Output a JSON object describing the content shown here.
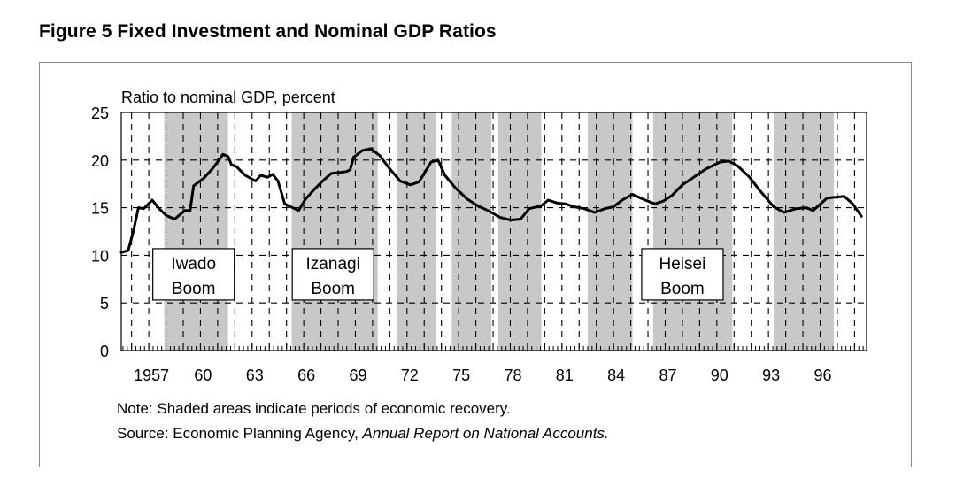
{
  "figure": {
    "title": "Figure 5  Fixed Investment and Nominal GDP Ratios",
    "note": "Note: Shaded areas indicate periods of economic recovery.",
    "source_prefix": "Source: Economic Planning Agency, ",
    "source_title": "Annual Report on National Accounts."
  },
  "chart_data": {
    "type": "line",
    "title": "Figure 5  Fixed Investment and Nominal GDP Ratios",
    "ylabel": "Ratio to nominal GDP, percent",
    "xlabel": "",
    "ylim": [
      0,
      25
    ],
    "xlim": [
      1955.4,
      1998.7
    ],
    "yticks": [
      0,
      5,
      10,
      15,
      20,
      25
    ],
    "xtick_values": [
      1957,
      1960,
      1963,
      1966,
      1969,
      1972,
      1975,
      1978,
      1981,
      1984,
      1987,
      1990,
      1993,
      1996
    ],
    "xtick_labels": [
      "1957",
      "60",
      "63",
      "66",
      "69",
      "72",
      "75",
      "78",
      "81",
      "84",
      "87",
      "90",
      "93",
      "96"
    ],
    "grid": true,
    "grid_style": "dashed, vertical every year, horizontal every 5",
    "legend": "none",
    "shaded_periods": [
      {
        "start": 1957.9,
        "end": 1961.6,
        "label": "Iwado Boom"
      },
      {
        "start": 1965.3,
        "end": 1970.3,
        "label": "Izanagi Boom"
      },
      {
        "start": 1971.4,
        "end": 1973.7,
        "label": ""
      },
      {
        "start": 1974.6,
        "end": 1976.9,
        "label": ""
      },
      {
        "start": 1977.3,
        "end": 1979.8,
        "label": ""
      },
      {
        "start": 1982.5,
        "end": 1985.1,
        "label": ""
      },
      {
        "start": 1986.3,
        "end": 1990.9,
        "label": "Heisei Boom"
      },
      {
        "start": 1993.3,
        "end": 1996.8,
        "label": ""
      }
    ],
    "annotations": [
      {
        "text": [
          "Iwado",
          "Boom"
        ],
        "year": 1959.6,
        "value": 8.0
      },
      {
        "text": [
          "Izanagi",
          "Boom"
        ],
        "year": 1967.7,
        "value": 8.0
      },
      {
        "text": [
          "Heisei",
          "Boom"
        ],
        "year": 1988.0,
        "value": 8.0
      }
    ],
    "series": [
      {
        "name": "Fixed investment / nominal GDP",
        "color": "#000000",
        "x": [
          1955.4,
          1955.8,
          1956.1,
          1956.4,
          1956.7,
          1957.2,
          1957.6,
          1958.0,
          1958.5,
          1959.1,
          1959.4,
          1959.6,
          1960.2,
          1960.7,
          1961.2,
          1961.3,
          1961.6,
          1961.8,
          1962.1,
          1962.6,
          1963.2,
          1963.5,
          1963.9,
          1964.2,
          1964.5,
          1964.9,
          1965.7,
          1966.1,
          1966.6,
          1967.1,
          1967.6,
          1968.1,
          1968.5,
          1968.7,
          1968.9,
          1969.4,
          1969.9,
          1970.4,
          1970.9,
          1971.6,
          1972.2,
          1972.7,
          1973.4,
          1973.8,
          1974.2,
          1974.8,
          1975.5,
          1976.1,
          1976.7,
          1977.4,
          1978.0,
          1978.6,
          1979.1,
          1979.8,
          1980.2,
          1980.7,
          1981.2,
          1981.7,
          1982.3,
          1982.9,
          1983.5,
          1984.0,
          1984.5,
          1985.1,
          1985.7,
          1986.4,
          1986.9,
          1987.4,
          1988.0,
          1988.5,
          1988.9,
          1989.4,
          1990.2,
          1990.7,
          1991.2,
          1991.9,
          1992.5,
          1993.3,
          1993.9,
          1994.6,
          1995.2,
          1995.6,
          1996.4,
          1997.4,
          1997.9,
          1998.4
        ],
        "values": [
          10.3,
          10.5,
          12.5,
          15.0,
          14.9,
          15.8,
          14.9,
          14.2,
          13.8,
          14.7,
          14.7,
          17.3,
          18.1,
          19.1,
          20.3,
          20.6,
          20.4,
          19.5,
          19.3,
          18.4,
          17.8,
          18.4,
          18.2,
          18.5,
          17.8,
          15.4,
          14.7,
          15.9,
          16.9,
          17.8,
          18.6,
          18.7,
          18.8,
          19.0,
          20.3,
          21.0,
          21.2,
          20.5,
          19.3,
          17.8,
          17.4,
          17.7,
          19.8,
          20.0,
          18.4,
          17.1,
          15.9,
          15.2,
          14.7,
          14.0,
          13.7,
          13.8,
          14.9,
          15.2,
          15.8,
          15.5,
          15.4,
          15.1,
          14.9,
          14.5,
          14.9,
          15.1,
          15.8,
          16.4,
          15.9,
          15.4,
          15.7,
          16.3,
          17.4,
          18.0,
          18.5,
          19.1,
          19.8,
          19.9,
          19.4,
          18.2,
          16.8,
          15.1,
          14.5,
          14.9,
          15.0,
          14.7,
          16.0,
          16.2,
          15.4,
          14.1
        ]
      }
    ]
  }
}
